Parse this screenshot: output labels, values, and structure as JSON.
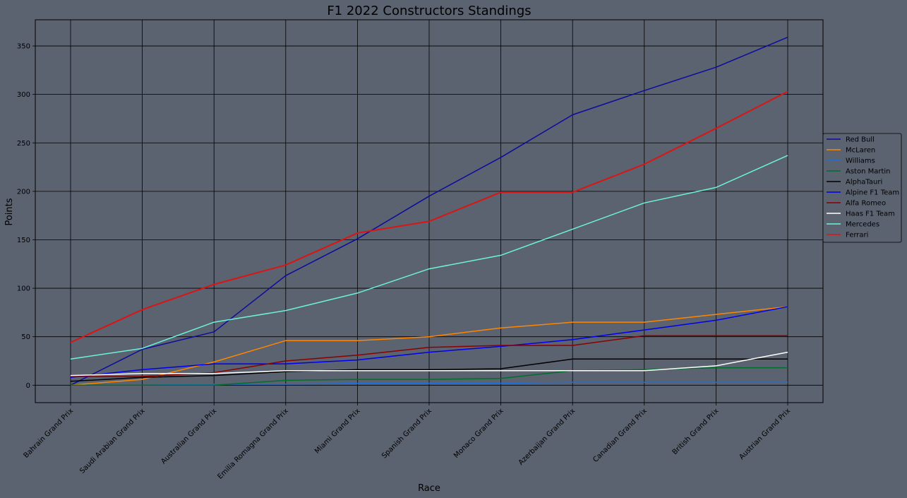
{
  "chart_data": {
    "type": "line",
    "title": "F1 2022 Constructors Standings",
    "xlabel": "Race",
    "ylabel": "Points",
    "categories": [
      "Bahrain Grand Prix",
      "Saudi Arabian Grand Prix",
      "Australian Grand Prix",
      "Emilia Romagna Grand Prix",
      "Miami Grand Prix",
      "Spanish Grand Prix",
      "Monaco Grand Prix",
      "Azerbaijan Grand Prix",
      "Canadian Grand Prix",
      "British Grand Prix",
      "Austrian Grand Prix"
    ],
    "ylim": [
      -18,
      377
    ],
    "yticks": [
      0,
      50,
      100,
      150,
      200,
      250,
      300,
      350
    ],
    "grid": true,
    "legend_position": "right",
    "series": [
      {
        "name": "Red Bull",
        "color": "#0c0c9e",
        "values": [
          0,
          37,
          55,
          113,
          151,
          195,
          235,
          279,
          304,
          328,
          359
        ]
      },
      {
        "name": "McLaren",
        "color": "#ff8700",
        "values": [
          0,
          6,
          24,
          46,
          46,
          50,
          59,
          65,
          65,
          73,
          81
        ]
      },
      {
        "name": "Williams",
        "color": "#1e6fdc",
        "values": [
          0,
          0,
          1,
          1,
          2,
          2,
          2,
          3,
          3,
          3,
          3
        ]
      },
      {
        "name": "Aston Martin",
        "color": "#006e2e",
        "values": [
          0,
          0,
          0,
          5,
          6,
          6,
          7,
          15,
          16,
          18,
          18
        ]
      },
      {
        "name": "AlphaTauri",
        "color": "#000000",
        "values": [
          4,
          8,
          10,
          14,
          16,
          16,
          17,
          27,
          27,
          27,
          27
        ]
      },
      {
        "name": "Alpine F1 Team",
        "color": "#0000ee",
        "values": [
          8,
          16,
          22,
          22,
          26,
          34,
          40,
          47,
          57,
          67,
          81
        ]
      },
      {
        "name": "Alfa Romeo",
        "color": "#8b0000",
        "values": [
          9,
          9,
          13,
          25,
          31,
          39,
          41,
          41,
          51,
          51,
          51
        ]
      },
      {
        "name": "Haas F1 Team",
        "color": "#ffffff",
        "values": [
          10,
          12,
          12,
          15,
          15,
          15,
          15,
          15,
          15,
          20,
          34
        ]
      },
      {
        "name": "Mercedes",
        "color": "#6cf2d8",
        "values": [
          27,
          38,
          65,
          77,
          95,
          120,
          134,
          161,
          188,
          204,
          237
        ]
      },
      {
        "name": "Ferrari",
        "color": "#dc1414",
        "values": [
          44,
          78,
          104,
          124,
          157,
          169,
          199,
          199,
          228,
          265,
          303
        ]
      }
    ]
  }
}
